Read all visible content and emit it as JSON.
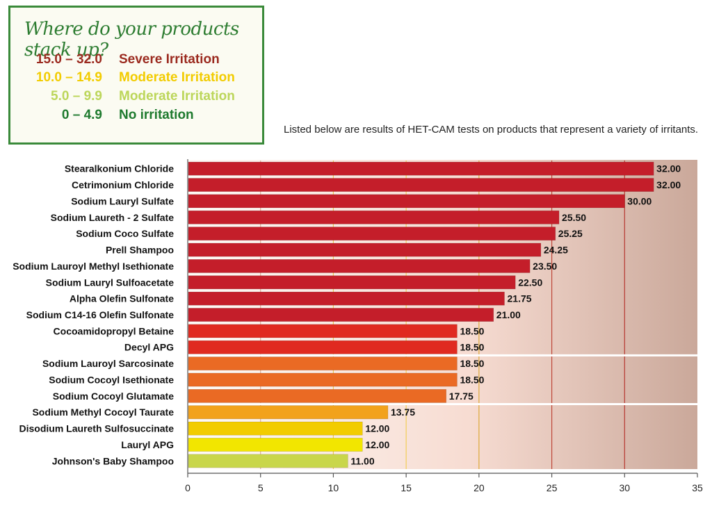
{
  "legend": {
    "title": "Where do your products stack up?",
    "rows": [
      {
        "range": "15.0 – 32.0",
        "label": "Severe Irritation",
        "color": "#9b2a1f"
      },
      {
        "range": "10.0 – 14.9",
        "label": "Moderate Irritation",
        "color": "#f2cc00"
      },
      {
        "range": "5.0 – 9.9",
        "label": "Moderate Irritation",
        "color": "#bcd65a"
      },
      {
        "range": "0 – 4.9",
        "label": "No irritation",
        "color": "#1e7a2e"
      }
    ]
  },
  "caption": "Listed below are results of HET-CAM tests on products that represent a variety of irritants.",
  "chart_data": {
    "type": "bar",
    "orientation": "horizontal",
    "categories": [
      "Stearalkonium Chloride",
      "Cetrimonium Chloride",
      "Sodium Lauryl Sulfate",
      "Sodium Laureth - 2 Sulfate",
      "Sodium Coco Sulfate",
      "Prell Shampoo",
      "Sodium Lauroyl Methyl Isethionate",
      "Sodium Lauryl Sulfoacetate",
      "Alpha Olefin Sulfonate",
      "Sodium C14-16 Olefin Sulfonate",
      "Cocoamidopropyl Betaine",
      "Decyl APG",
      "Sodium Lauroyl Sarcosinate",
      "Sodium Cocoyl Isethionate",
      "Sodium Cocoyl Glutamate",
      "Sodium Methyl Cocoyl Taurate",
      "Disodium Laureth Sulfosuccinate",
      "Lauryl APG",
      "Johnson's Baby Shampoo"
    ],
    "values": [
      32.0,
      32.0,
      30.0,
      25.5,
      25.25,
      24.25,
      23.5,
      22.5,
      21.75,
      21.0,
      18.5,
      18.5,
      18.5,
      18.5,
      17.75,
      13.75,
      12.0,
      12.0,
      11.0
    ],
    "value_labels": [
      "32.00",
      "32.00",
      "30.00",
      "25.50",
      "25.25",
      "24.25",
      "23.50",
      "22.50",
      "21.75",
      "21.00",
      "18.50",
      "18.50",
      "18.50",
      "18.50",
      "17.75",
      "13.75",
      "12.00",
      "12.00",
      "11.00"
    ],
    "bar_colors": [
      "#c41e2a",
      "#c41e2a",
      "#c41e2a",
      "#c41e2a",
      "#c41e2a",
      "#c41e2a",
      "#c41e2a",
      "#c41e2a",
      "#c41e2a",
      "#c41e2a",
      "#e02a20",
      "#e02a20",
      "#ea6a24",
      "#ea6a24",
      "#ea6a24",
      "#f2a21c",
      "#f2cc00",
      "#f2e600",
      "#c9d64a"
    ],
    "group_gap_after": [
      11,
      14
    ],
    "xlim": [
      0,
      35
    ],
    "xticks": [
      0,
      5,
      10,
      15,
      20,
      25,
      30,
      35
    ],
    "xlabel": "",
    "ylabel": "",
    "grid": true
  }
}
